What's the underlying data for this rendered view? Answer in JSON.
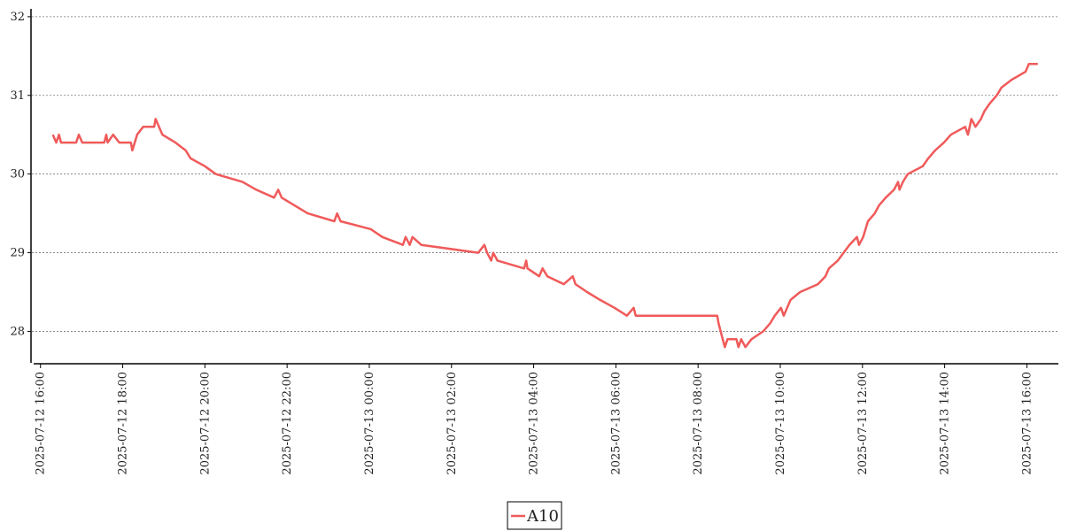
{
  "chart_data": {
    "type": "line",
    "x": [
      "2025-07-12 16:18",
      "2025-07-12 16:23",
      "2025-07-12 16:27",
      "2025-07-12 16:30",
      "2025-07-12 16:52",
      "2025-07-12 16:56",
      "2025-07-12 17:01",
      "2025-07-12 17:33",
      "2025-07-12 17:36",
      "2025-07-12 17:38",
      "2025-07-12 17:46",
      "2025-07-12 17:55",
      "2025-07-12 18:12",
      "2025-07-12 18:14",
      "2025-07-12 18:21",
      "2025-07-12 18:30",
      "2025-07-12 18:46",
      "2025-07-12 18:48",
      "2025-07-12 18:53",
      "2025-07-12 18:58",
      "2025-07-12 19:17",
      "2025-07-12 19:32",
      "2025-07-12 19:39",
      "2025-07-12 20:00",
      "2025-07-12 20:16",
      "2025-07-12 20:55",
      "2025-07-12 21:15",
      "2025-07-12 21:41",
      "2025-07-12 21:47",
      "2025-07-12 21:52",
      "2025-07-12 22:11",
      "2025-07-12 22:30",
      "2025-07-12 23:09",
      "2025-07-12 23:13",
      "2025-07-12 23:18",
      "2025-07-13 00:02",
      "2025-07-13 00:19",
      "2025-07-13 00:49",
      "2025-07-13 00:53",
      "2025-07-13 00:59",
      "2025-07-13 01:03",
      "2025-07-13 01:16",
      "2025-07-13 02:39",
      "2025-07-13 02:48",
      "2025-07-13 02:52",
      "2025-07-13 02:58",
      "2025-07-13 03:01",
      "2025-07-13 03:07",
      "2025-07-13 03:46",
      "2025-07-13 03:49",
      "2025-07-13 03:51",
      "2025-07-13 04:08",
      "2025-07-13 04:13",
      "2025-07-13 04:20",
      "2025-07-13 04:44",
      "2025-07-13 04:57",
      "2025-07-13 05:01",
      "2025-07-13 05:18",
      "2025-07-13 05:37",
      "2025-07-13 05:58",
      "2025-07-13 06:16",
      "2025-07-13 06:26",
      "2025-07-13 06:29",
      "2025-07-13 08:28",
      "2025-07-13 08:30",
      "2025-07-13 08:36",
      "2025-07-13 08:39",
      "2025-07-13 08:43",
      "2025-07-13 08:56",
      "2025-07-13 08:59",
      "2025-07-13 09:03",
      "2025-07-13 09:09",
      "2025-07-13 09:18",
      "2025-07-13 09:35",
      "2025-07-13 09:45",
      "2025-07-13 09:52",
      "2025-07-13 10:01",
      "2025-07-13 10:05",
      "2025-07-13 10:15",
      "2025-07-13 10:29",
      "2025-07-13 10:55",
      "2025-07-13 11:06",
      "2025-07-13 11:11",
      "2025-07-13 11:24",
      "2025-07-13 11:41",
      "2025-07-13 11:52",
      "2025-07-13 11:55",
      "2025-07-13 12:01",
      "2025-07-13 12:08",
      "2025-07-13 12:18",
      "2025-07-13 12:24",
      "2025-07-13 12:34",
      "2025-07-13 12:46",
      "2025-07-13 12:52",
      "2025-07-13 12:54",
      "2025-07-13 12:59",
      "2025-07-13 13:06",
      "2025-07-13 13:28",
      "2025-07-13 13:36",
      "2025-07-13 13:46",
      "2025-07-13 13:59",
      "2025-07-13 14:09",
      "2025-07-13 14:30",
      "2025-07-13 14:34",
      "2025-07-13 14:39",
      "2025-07-13 14:45",
      "2025-07-13 14:53",
      "2025-07-13 14:58",
      "2025-07-13 15:06",
      "2025-07-13 15:16",
      "2025-07-13 15:23",
      "2025-07-13 15:38",
      "2025-07-13 15:58",
      "2025-07-13 16:03",
      "2025-07-13 16:16"
    ],
    "series": [
      {
        "name": "A10",
        "color": "#f05a5a",
        "values": [
          30.5,
          30.4,
          30.5,
          30.4,
          30.4,
          30.5,
          30.4,
          30.4,
          30.5,
          30.4,
          30.5,
          30.4,
          30.4,
          30.3,
          30.5,
          30.6,
          30.6,
          30.7,
          30.6,
          30.5,
          30.4,
          30.3,
          30.2,
          30.1,
          30.0,
          29.9,
          29.8,
          29.7,
          29.8,
          29.7,
          29.6,
          29.5,
          29.4,
          29.5,
          29.4,
          29.3,
          29.2,
          29.1,
          29.2,
          29.1,
          29.2,
          29.1,
          29.0,
          29.1,
          29.0,
          28.9,
          29.0,
          28.9,
          28.8,
          28.9,
          28.8,
          28.7,
          28.8,
          28.7,
          28.6,
          28.7,
          28.6,
          28.5,
          28.4,
          28.3,
          28.2,
          28.3,
          28.2,
          28.2,
          28.1,
          27.9,
          27.8,
          27.9,
          27.9,
          27.8,
          27.9,
          27.8,
          27.9,
          28.0,
          28.1,
          28.2,
          28.3,
          28.2,
          28.4,
          28.5,
          28.6,
          28.7,
          28.8,
          28.9,
          29.1,
          29.2,
          29.1,
          29.2,
          29.4,
          29.5,
          29.6,
          29.7,
          29.8,
          29.9,
          29.8,
          29.9,
          30.0,
          30.1,
          30.2,
          30.3,
          30.4,
          30.5,
          30.6,
          30.5,
          30.7,
          30.6,
          30.7,
          30.8,
          30.9,
          31.0,
          31.1,
          31.2,
          31.3,
          31.4,
          31.4
        ]
      }
    ],
    "xlim": [
      "2025-07-12 15:50",
      "2025-07-13 16:46"
    ],
    "xticks": [
      "2025-07-12 16:00",
      "2025-07-12 18:00",
      "2025-07-12 20:00",
      "2025-07-12 22:00",
      "2025-07-13 00:00",
      "2025-07-13 02:00",
      "2025-07-13 04:00",
      "2025-07-13 06:00",
      "2025-07-13 08:00",
      "2025-07-13 10:00",
      "2025-07-13 12:00",
      "2025-07-13 14:00",
      "2025-07-13 16:00"
    ],
    "ylim": [
      27.6,
      32.1
    ],
    "yticks": [
      28,
      29,
      30,
      31,
      32
    ],
    "grid": true,
    "legend": "bottom"
  }
}
